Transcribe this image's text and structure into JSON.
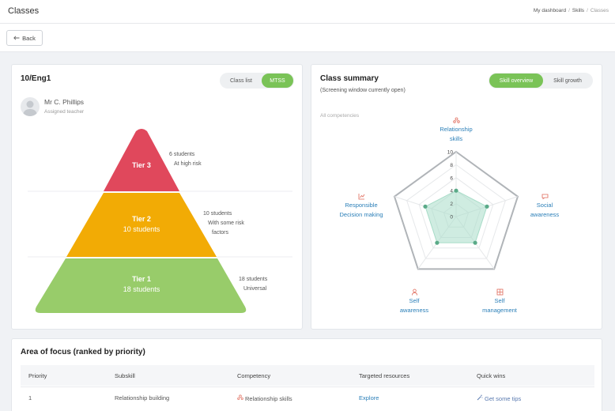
{
  "header": {
    "title": "Classes",
    "breadcrumb": [
      "My dashboard",
      "Skills",
      "Classes"
    ]
  },
  "subbar": {
    "back_label": "Back"
  },
  "class_card": {
    "title": "10/Eng1",
    "toggle": [
      {
        "label": "Class list",
        "active": false
      },
      {
        "label": "MTSS",
        "active": true
      }
    ],
    "teacher": {
      "name": "Mr C. Phillips",
      "role": "Assigned teacher"
    },
    "tiers": [
      {
        "name": "Tier 3",
        "count_label": "",
        "note": [
          "6 students",
          "At high risk"
        ],
        "color": "#e0485c"
      },
      {
        "name": "Tier 2",
        "count_label": "10 students",
        "note": [
          "10 students",
          "With some risk",
          "factors"
        ],
        "color": "#f2ab05"
      },
      {
        "name": "Tier 1",
        "count_label": "18 students",
        "note": [
          "18 students",
          "Universal"
        ],
        "color": "#98cc6a"
      }
    ]
  },
  "summary_card": {
    "title": "Class summary",
    "subtitle": "(Screening window currently open)",
    "toggle": [
      {
        "label": "Skill overview",
        "active": true
      },
      {
        "label": "Skill growth",
        "active": false
      }
    ],
    "filter_label": "All competencies",
    "chart_data": {
      "type": "radar",
      "axes": [
        "Relationship skills",
        "Social awareness",
        "Self management",
        "Self awareness",
        "Responsible Decision making"
      ],
      "ticks": [
        0,
        2,
        4,
        6,
        8,
        10
      ],
      "range": [
        0,
        10
      ],
      "values": [
        4,
        5,
        5,
        5,
        5
      ],
      "fill_color": "#a8dcc8",
      "point_color": "#5aaa88",
      "axis_icons": [
        "users-icon",
        "chat-icon",
        "grid-icon",
        "person-icon",
        "chart-icon"
      ]
    },
    "axis_labels": [
      [
        "Relationship",
        "skills"
      ],
      [
        "Social",
        "awareness"
      ],
      [
        "Self",
        "management"
      ],
      [
        "Self",
        "awareness"
      ],
      [
        "Responsible",
        "Decision making"
      ]
    ]
  },
  "focus_card": {
    "title": "Area of focus (ranked by priority)",
    "columns": [
      "Priority",
      "Subskill",
      "Competency",
      "Targeted resources",
      "Quick wins"
    ],
    "rows": [
      {
        "priority": "1",
        "subskill": "Relationship building",
        "competency": "Relationship skills",
        "resource": "Explore",
        "quick_win": "Get some tips"
      }
    ]
  }
}
